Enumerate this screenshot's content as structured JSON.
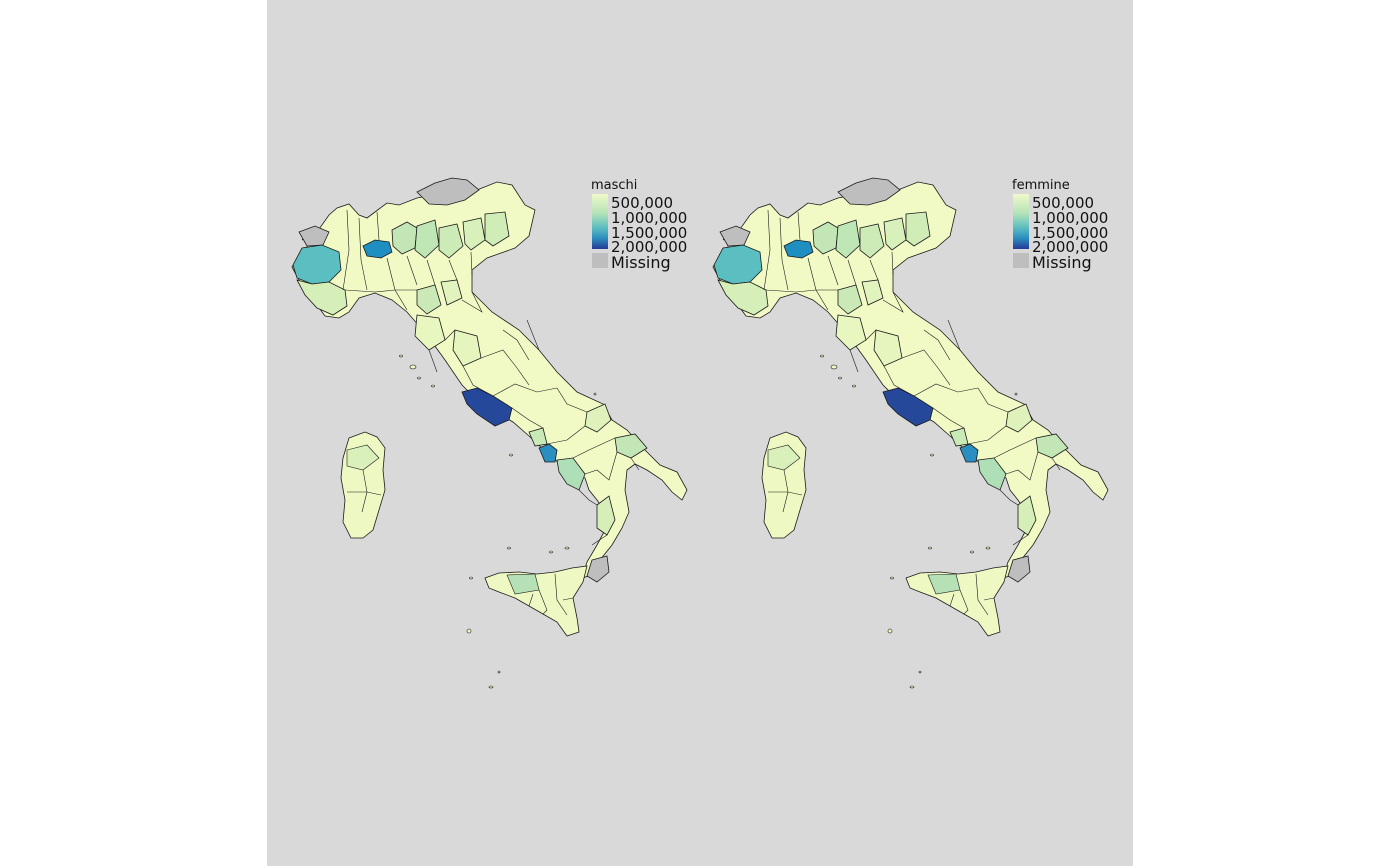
{
  "figure": {
    "background_color": "#d9d9d9",
    "outer_background_color": "#ffffff",
    "border_color": "#1a1a1a"
  },
  "panels": [
    {
      "id": "maschi",
      "legend": {
        "title": "maschi",
        "breaks": [
          "500,000",
          "1,000,000",
          "1,500,000",
          "2,000,000"
        ],
        "missing_label": "Missing",
        "missing_color": "#bebebe"
      }
    },
    {
      "id": "femmine",
      "legend": {
        "title": "femmine",
        "breaks": [
          "500,000",
          "1,000,000",
          "1,500,000",
          "2,000,000"
        ],
        "missing_label": "Missing",
        "missing_color": "#bebebe"
      }
    }
  ],
  "palette": {
    "name": "YlGnBu",
    "stops": [
      "#ffffcc",
      "#c7e9b4",
      "#7fcdbb",
      "#41b6c4",
      "#1d91c0",
      "#225ea8",
      "#253494"
    ]
  }
}
